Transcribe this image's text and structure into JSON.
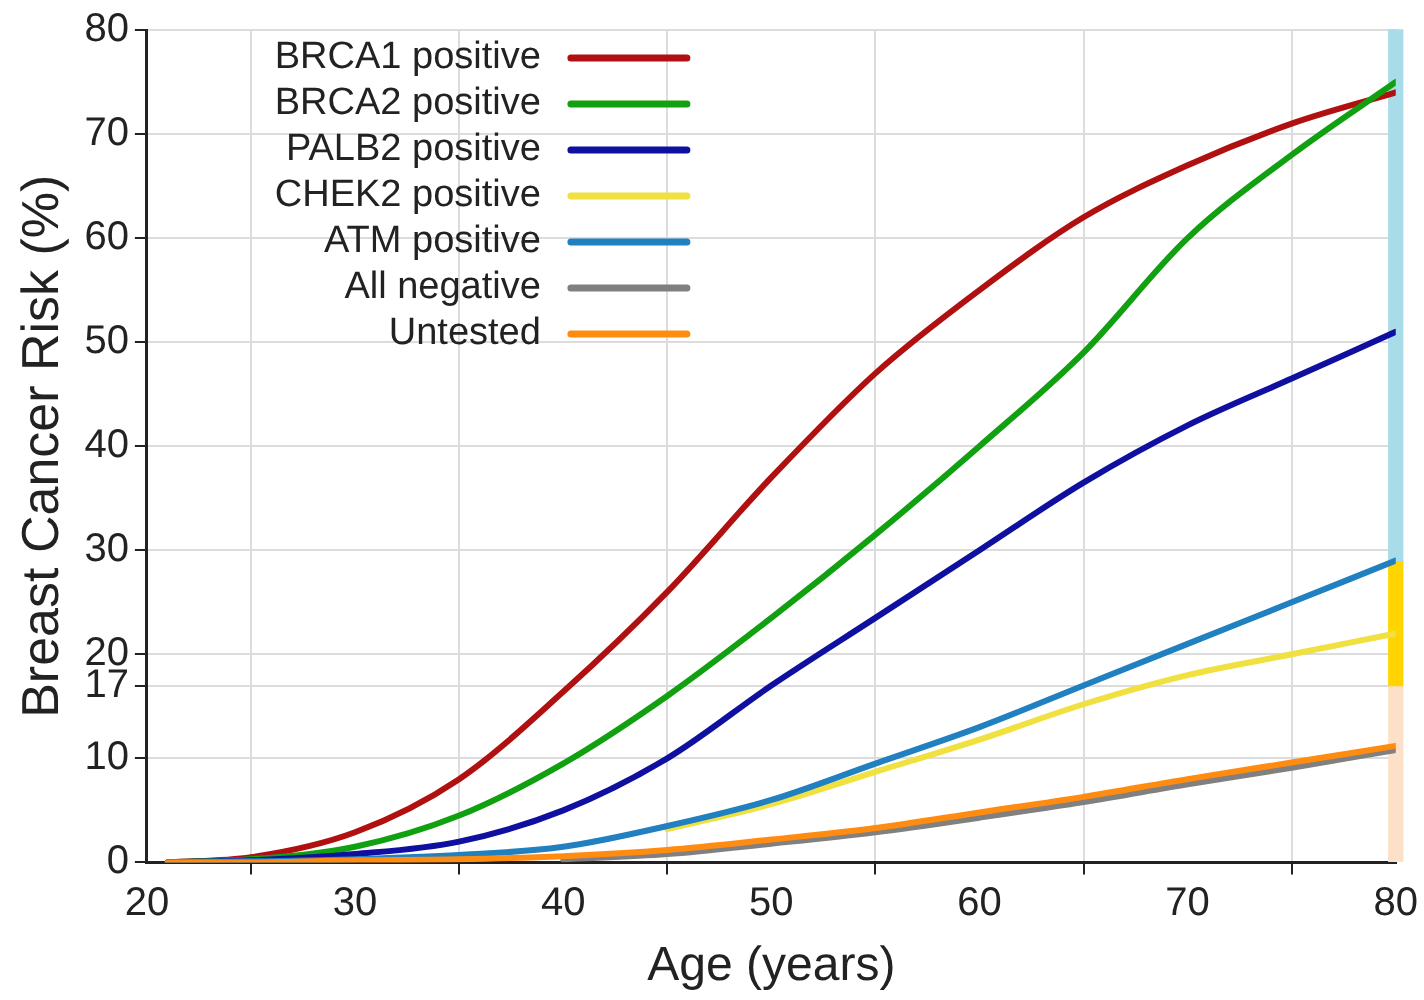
{
  "chart_data": {
    "type": "line",
    "xlabel": "Age (years)",
    "ylabel": "Breast Cancer Risk (%)",
    "x": [
      21,
      25,
      30,
      35,
      40,
      45,
      50,
      55,
      60,
      65,
      70,
      75,
      80
    ],
    "series": [
      {
        "name": "BRCA1 positive",
        "color": "#b01010",
        "values": [
          0,
          0.5,
          2.9,
          8,
          16.4,
          26,
          37,
          47,
          55,
          62,
          67,
          71,
          74
        ]
      },
      {
        "name": "BRCA2 positive",
        "color": "#10a010",
        "values": [
          0,
          0.3,
          1.5,
          4.5,
          9.5,
          16,
          23.5,
          31.5,
          40,
          49,
          60,
          68,
          75
        ]
      },
      {
        "name": "PALB2 positive",
        "color": "#1010a0",
        "values": [
          0,
          0.2,
          0.8,
          2,
          5,
          10,
          17,
          23.5,
          30,
          36.5,
          42,
          46.5,
          51
        ]
      },
      {
        "name": "CHEK2 positive",
        "color": "#f0e040",
        "values": [
          null,
          null,
          null,
          null,
          null,
          3.2,
          5.6,
          8.7,
          11.8,
          15.2,
          18,
          20,
          22
        ]
      },
      {
        "name": "ATM positive",
        "color": "#2080c0",
        "values": [
          0,
          0.1,
          0.3,
          0.7,
          1.5,
          3.5,
          6,
          9.5,
          13,
          17,
          21,
          25,
          29
        ]
      },
      {
        "name": "All negative",
        "color": "#808080",
        "values": [
          null,
          null,
          null,
          null,
          0.3,
          0.8,
          1.8,
          2.9,
          4.3,
          5.8,
          7.5,
          9.1,
          10.8
        ]
      },
      {
        "name": "Untested",
        "color": "#ff8c10",
        "values": [
          0,
          0,
          0.2,
          0.3,
          0.6,
          1.2,
          2.2,
          3.3,
          4.8,
          6.3,
          8,
          9.6,
          11.2
        ]
      },
      {
        "type": "bar",
        "base": [
          null,
          null,
          null,
          null,
          null,
          null,
          null,
          null,
          null,
          null,
          null,
          null,
          29
        ],
        "values": [
          null,
          null,
          null,
          null,
          null,
          null,
          null,
          null,
          null,
          null,
          null,
          null,
          51
        ],
        "color": "#a8dce8"
      },
      {
        "type": "bar",
        "base": [
          null,
          null,
          null,
          null,
          null,
          null,
          null,
          null,
          null,
          null,
          null,
          null,
          17
        ],
        "values": [
          null,
          null,
          null,
          null,
          null,
          null,
          null,
          null,
          null,
          null,
          null,
          null,
          12
        ],
        "color": "#ffd400"
      },
      {
        "type": "bar",
        "base": [
          null,
          null,
          null,
          null,
          null,
          null,
          null,
          null,
          null,
          null,
          null,
          null,
          0
        ],
        "values": [
          null,
          null,
          null,
          null,
          null,
          null,
          null,
          null,
          null,
          null,
          null,
          null,
          17
        ],
        "color": "#fde0c8"
      }
    ],
    "xlim": [
      20,
      80
    ],
    "xticks": [
      20,
      30,
      40,
      50,
      60,
      70,
      80
    ],
    "ylim": [
      0,
      80
    ],
    "yticks": [
      0,
      10,
      17,
      20,
      30,
      40,
      50,
      60,
      70,
      80
    ],
    "grid": true,
    "legend": "top left",
    "marker": "none",
    "line_style": "solid"
  }
}
